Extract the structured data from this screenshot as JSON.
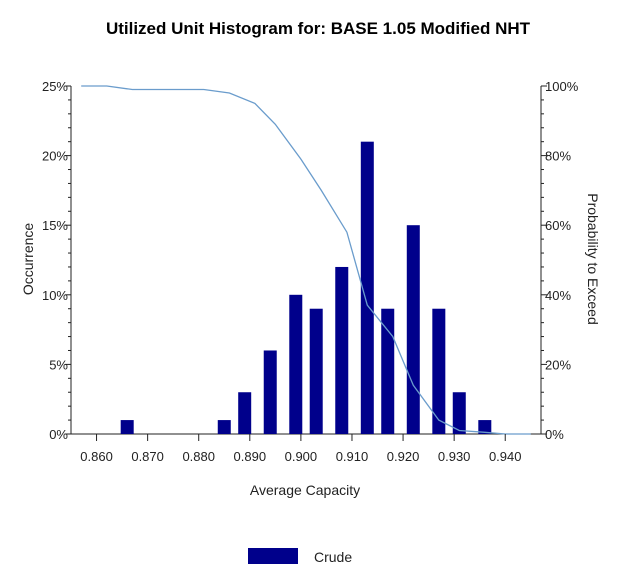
{
  "chart_data": {
    "type": "bar",
    "title": "Utilized Unit Histogram for: BASE 1.05 Modified NHT",
    "xlabel": "Average Capacity",
    "ylabel": "Occurrence",
    "y2label": "Probability to Exceed",
    "xlim": [
      0.855,
      0.947
    ],
    "ylim": [
      0,
      25
    ],
    "y2lim": [
      0,
      100
    ],
    "x_ticks": [
      "0.860",
      "0.870",
      "0.880",
      "0.890",
      "0.900",
      "0.910",
      "0.920",
      "0.930",
      "0.940"
    ],
    "x_tick_values": [
      0.86,
      0.87,
      0.88,
      0.89,
      0.9,
      0.91,
      0.92,
      0.93,
      0.94
    ],
    "y_ticks": [
      "0%",
      "5%",
      "10%",
      "15%",
      "20%",
      "25%"
    ],
    "y_tick_values": [
      0,
      5,
      10,
      15,
      20,
      25
    ],
    "y2_ticks": [
      "0%",
      "20%",
      "40%",
      "60%",
      "80%",
      "100%"
    ],
    "y2_tick_values": [
      0,
      20,
      40,
      60,
      80,
      100
    ],
    "colors": {
      "bars": "#00008b",
      "line": "#6a9ccc"
    },
    "series": [
      {
        "name": "Crude",
        "type": "bar",
        "x": [
          0.866,
          0.885,
          0.889,
          0.894,
          0.899,
          0.903,
          0.908,
          0.913,
          0.917,
          0.922,
          0.927,
          0.931,
          0.936
        ],
        "values": [
          1,
          1,
          3,
          6,
          10,
          9,
          12,
          21,
          9,
          15,
          9,
          3,
          1
        ]
      },
      {
        "type": "line",
        "axis": "right",
        "x": [
          0.857,
          0.862,
          0.867,
          0.872,
          0.877,
          0.881,
          0.886,
          0.891,
          0.895,
          0.9,
          0.904,
          0.909,
          0.913,
          0.918,
          0.922,
          0.927,
          0.931,
          0.936,
          0.94,
          0.945
        ],
        "values": [
          100,
          100,
          99,
          99,
          99,
          99,
          98,
          95,
          89,
          79,
          70,
          58,
          37,
          28,
          14,
          4,
          1,
          0.5,
          0,
          0
        ]
      }
    ],
    "legend": {
      "position": "bottom-center",
      "entries": [
        "Crude"
      ]
    }
  }
}
